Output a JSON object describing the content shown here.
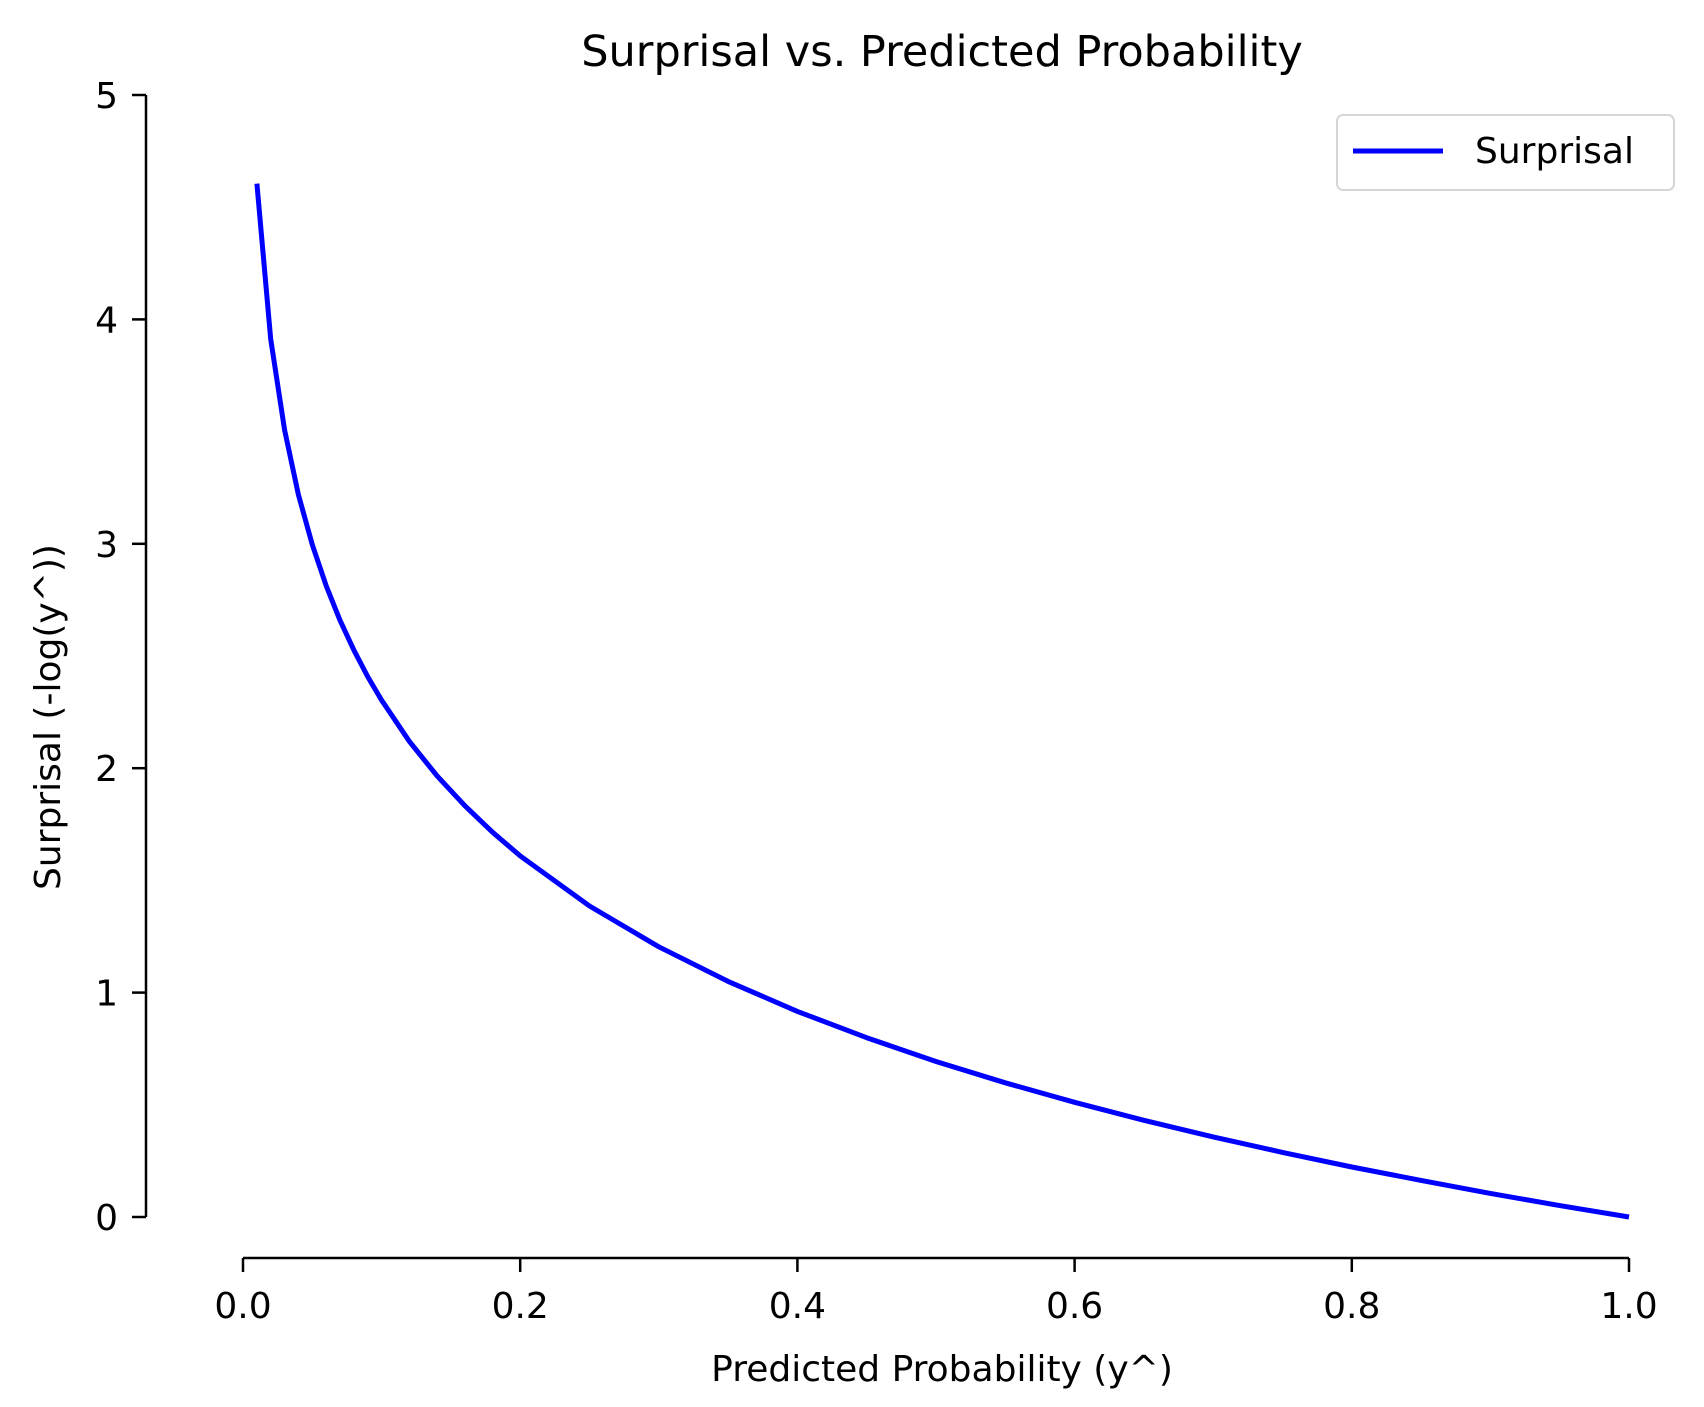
{
  "chart_data": {
    "type": "line",
    "title": "Surprisal vs. Predicted Probability",
    "xlabel": "Predicted Probability (y^)",
    "ylabel": "Surprisal (-log(y^))",
    "xlim": [
      -0.07,
      1.02
    ],
    "ylim": [
      0,
      5
    ],
    "x_ticks": [
      "0.0",
      "0.2",
      "0.4",
      "0.6",
      "0.8",
      "1.0"
    ],
    "y_ticks": [
      "0",
      "1",
      "2",
      "3",
      "4",
      "5"
    ],
    "grid": false,
    "legend_position": "top-right",
    "series": [
      {
        "name": "Surprisal",
        "color": "#0000ff",
        "x": [
          0.01,
          0.02,
          0.03,
          0.04,
          0.05,
          0.06,
          0.07,
          0.08,
          0.09,
          0.1,
          0.12,
          0.14,
          0.16,
          0.18,
          0.2,
          0.25,
          0.3,
          0.35,
          0.4,
          0.45,
          0.5,
          0.55,
          0.6,
          0.65,
          0.7,
          0.75,
          0.8,
          0.85,
          0.9,
          0.95,
          1.0
        ],
        "y": [
          4.605,
          3.912,
          3.507,
          3.219,
          2.996,
          2.813,
          2.659,
          2.526,
          2.408,
          2.303,
          2.12,
          1.966,
          1.833,
          1.715,
          1.609,
          1.386,
          1.204,
          1.05,
          0.916,
          0.799,
          0.693,
          0.598,
          0.511,
          0.431,
          0.357,
          0.288,
          0.223,
          0.163,
          0.105,
          0.051,
          0.0
        ]
      }
    ]
  }
}
